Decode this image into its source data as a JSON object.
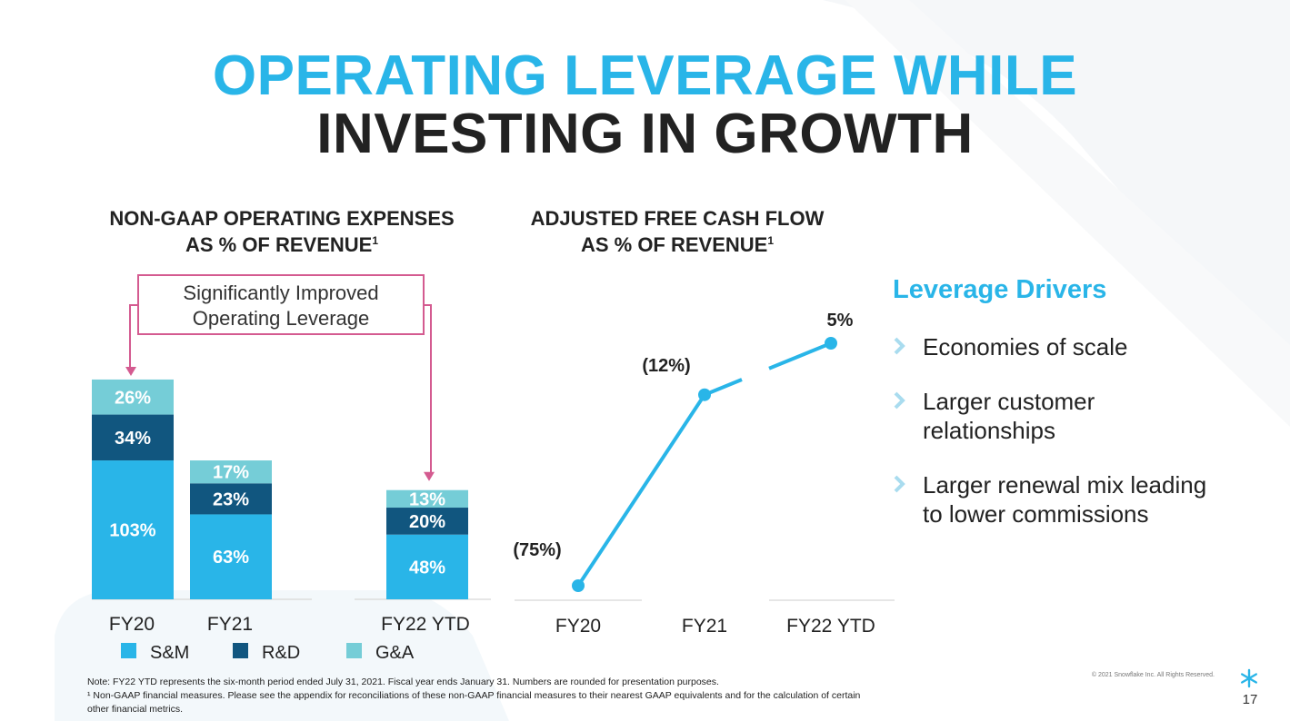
{
  "title": {
    "line1": "OPERATING LEVERAGE WHILE",
    "line2": "INVESTING IN GROWTH"
  },
  "colors": {
    "accent": "#29B5E8",
    "sm": "#29B5E8",
    "rd": "#11567F",
    "ga": "#75CDD7",
    "callout": "#D45B90",
    "text": "#222222"
  },
  "chart_data": [
    {
      "type": "bar",
      "stacked": true,
      "title": "NON-GAAP OPERATING EXPENSES AS % OF REVENUE",
      "title_line1": "NON-GAAP OPERATING EXPENSES",
      "title_line2": "AS % OF REVENUE",
      "title_sup": "1",
      "categories": [
        "FY20",
        "FY21",
        "FY22 YTD"
      ],
      "series": [
        {
          "name": "S&M",
          "values": [
            103,
            63,
            48
          ],
          "labels": [
            "103%",
            "63%",
            "48%"
          ],
          "color": "#29B5E8"
        },
        {
          "name": "R&D",
          "values": [
            34,
            23,
            20
          ],
          "labels": [
            "34%",
            "23%",
            "20%"
          ],
          "color": "#11567F"
        },
        {
          "name": "G&A",
          "values": [
            26,
            17,
            13
          ],
          "labels": [
            "26%",
            "17%",
            "13%"
          ],
          "color": "#75CDD7"
        }
      ],
      "legend": "bottom",
      "ylim": [
        0,
        170
      ],
      "callout": {
        "line1": "Significantly Improved",
        "line2": "Operating Leverage",
        "from_category": "FY20",
        "to_category": "FY22 YTD"
      }
    },
    {
      "type": "line",
      "title": "ADJUSTED FREE CASH FLOW AS % OF REVENUE",
      "title_line1": "ADJUSTED FREE CASH FLOW",
      "title_line2": "AS % OF REVENUE",
      "title_sup": "1",
      "categories": [
        "FY20",
        "FY21",
        "FY22 YTD"
      ],
      "values": [
        -75,
        -12,
        5
      ],
      "labels": [
        "(75%)",
        "(12%)",
        "5%"
      ],
      "ylim": [
        -80,
        20
      ],
      "color": "#29B5E8"
    }
  ],
  "drivers": {
    "title": "Leverage Drivers",
    "items": [
      {
        "line1": "Economies of scale",
        "line2": ""
      },
      {
        "line1": "Larger customer",
        "line2": "relationships"
      },
      {
        "line1": "Larger renewal mix leading",
        "line2": "to lower commissions"
      }
    ]
  },
  "footer": {
    "note1": "Note: FY22 YTD represents the six-month period ended July 31, 2021. Fiscal year ends January 31. Numbers are rounded for presentation purposes.",
    "note2": "¹ Non-GAAP financial measures. Please see the appendix for reconciliations of these non-GAAP financial measures to their nearest GAAP equivalents and for the calculation of certain",
    "note3": "other financial metrics.",
    "copyright": "© 2021 Snowflake Inc. All Rights Reserved.",
    "page": "17"
  },
  "icons": {
    "bullet": "chevron-right-icon",
    "logo": "snowflake-icon"
  }
}
